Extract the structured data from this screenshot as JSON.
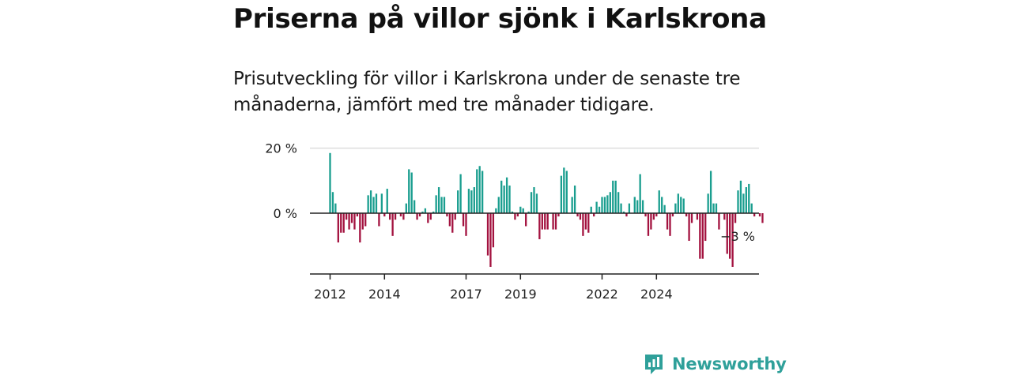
{
  "title": "Priserna på villor sjönk i Karlskrona",
  "subtitle": "Prisutveckling för villor i Karlskrona under de senaste tre månaderna, jämfört med tre månader tidigare.",
  "brand": {
    "name": "Newsworthy",
    "icon": "newsworthy-logo-icon",
    "color": "#2fa09a"
  },
  "colors": {
    "positive": "#1a9e8f",
    "negative": "#a3123f",
    "grid": "#dddddd",
    "axis": "#222222"
  },
  "chart_data": {
    "type": "bar",
    "unit": "%",
    "ylim": [
      -19,
      20
    ],
    "grid": true,
    "y_ticks": [
      {
        "value": 0,
        "label": "0 %"
      },
      {
        "value": 20,
        "label": "20 %"
      }
    ],
    "x_ticks": [
      {
        "index": 0,
        "label": "2012"
      },
      {
        "index": 20,
        "label": "2014"
      },
      {
        "index": 50,
        "label": "2017"
      },
      {
        "index": 70,
        "label": "2019"
      },
      {
        "index": 100,
        "label": "2022"
      },
      {
        "index": 120,
        "label": "2024"
      }
    ],
    "last_value_label": "−3 %",
    "values": [
      18.5,
      6.5,
      3,
      -9,
      -6,
      -6,
      -2,
      -5,
      -3,
      -5,
      -1,
      -9,
      -5,
      -4,
      5.5,
      7,
      5,
      6,
      -4,
      6,
      -1,
      7.5,
      -2,
      -7,
      -2,
      0,
      -1,
      -2,
      3,
      13.5,
      12.5,
      4,
      -2,
      -1,
      0.5,
      1.5,
      -3,
      -2,
      0.5,
      5.5,
      8,
      5,
      5,
      -1,
      -4,
      -6,
      -2,
      7,
      12,
      -4,
      -7,
      7.5,
      7,
      8,
      13.5,
      14.5,
      13,
      0,
      -13,
      -16.5,
      -10.5,
      1.5,
      5,
      10,
      8.5,
      11,
      8.5,
      0.5,
      -2,
      -1,
      2,
      1.5,
      -4,
      0.5,
      6.5,
      8,
      6,
      -8,
      -5,
      -5,
      -5,
      0,
      -5,
      -5,
      -1,
      11.5,
      14,
      13,
      0,
      5,
      8.5,
      -1,
      -2,
      -7,
      -5,
      -6,
      2,
      -1,
      3.5,
      2,
      5,
      5,
      5.5,
      6.5,
      10,
      10,
      6.5,
      3,
      0.5,
      -1,
      3,
      0,
      5,
      4,
      12,
      4,
      -1,
      -7,
      -5,
      -2,
      -1,
      7,
      5,
      2.5,
      -5,
      -7,
      -1,
      3,
      6,
      5,
      4.5,
      -1,
      -8.5,
      -3,
      0,
      -2,
      -14,
      -14,
      -8.5,
      6,
      13,
      3,
      3,
      -5,
      0,
      -2,
      -12.5,
      -14,
      -16.5,
      -3,
      7,
      10,
      6,
      8,
      9,
      3,
      -1,
      0,
      -1,
      -3
    ]
  }
}
